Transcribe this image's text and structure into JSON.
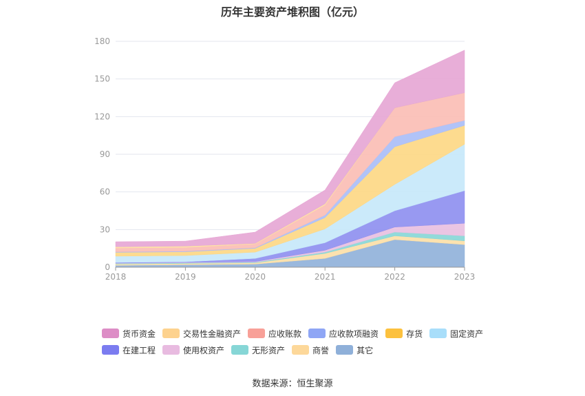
{
  "title": "历年主要资产堆积图（亿元）",
  "source": "数据来源：恒生聚源",
  "chart_data": {
    "type": "area",
    "stacked": true,
    "categories": [
      "2018",
      "2019",
      "2020",
      "2021",
      "2022",
      "2023"
    ],
    "ylim": [
      0,
      180
    ],
    "yticks": [
      0,
      30,
      60,
      90,
      120,
      150,
      180
    ],
    "grid": true,
    "legend_position": "bottom",
    "series": [
      {
        "name": "其它",
        "color": "#8fb0d9",
        "values": [
          1.5,
          2,
          2.5,
          7,
          22,
          18
        ]
      },
      {
        "name": "商誉",
        "color": "#fcdfa6",
        "values": [
          1,
          1,
          1,
          4,
          3,
          3
        ]
      },
      {
        "name": "无形资产",
        "color": "#86d6d6",
        "values": [
          0.5,
          0.5,
          0.5,
          1,
          3,
          4
        ]
      },
      {
        "name": "使用权资产",
        "color": "#e8bfe0",
        "values": [
          0.3,
          0.3,
          0.5,
          1.5,
          4,
          10
        ]
      },
      {
        "name": "在建工程",
        "color": "#8d8ef0",
        "values": [
          0.5,
          0.5,
          2.5,
          6,
          13,
          26
        ]
      },
      {
        "name": "固定资产",
        "color": "#c5e8fa",
        "values": [
          5,
          5,
          5,
          11,
          21,
          37
        ]
      },
      {
        "name": "存货",
        "color": "#fdd783",
        "values": [
          3,
          3,
          3,
          9,
          30,
          15
        ]
      },
      {
        "name": "应收款项融资",
        "color": "#a9bdf7",
        "values": [
          0.5,
          0.5,
          0.5,
          2,
          8,
          4
        ]
      },
      {
        "name": "应收账款",
        "color": "#fbbcb4",
        "values": [
          3,
          3,
          3,
          8,
          23,
          22
        ]
      },
      {
        "name": "交易性金融资产",
        "color": "#fddfa4",
        "values": [
          1,
          1,
          0.5,
          1,
          0,
          0
        ]
      },
      {
        "name": "货币资金",
        "color": "#e6a5d4",
        "values": [
          4,
          4,
          9,
          11,
          20,
          34
        ]
      }
    ],
    "legend": [
      {
        "name": "货币资金",
        "color": "#dd8dc6"
      },
      {
        "name": "交易性金融资产",
        "color": "#fdd28e"
      },
      {
        "name": "应收账款",
        "color": "#f8a098"
      },
      {
        "name": "应收款项融资",
        "color": "#8fa6f5"
      },
      {
        "name": "存货",
        "color": "#fcc13e"
      },
      {
        "name": "固定资产",
        "color": "#a8defa"
      },
      {
        "name": "在建工程",
        "color": "#7b7cf0"
      },
      {
        "name": "使用权资产",
        "color": "#e8bbe0"
      },
      {
        "name": "无形资产",
        "color": "#86d6d6"
      },
      {
        "name": "商誉",
        "color": "#fdd89a"
      },
      {
        "name": "其它",
        "color": "#8fb0d9"
      }
    ]
  }
}
